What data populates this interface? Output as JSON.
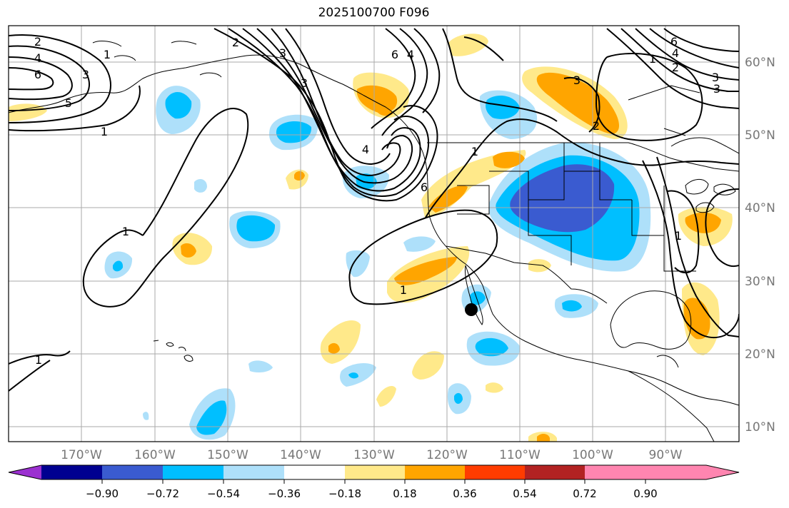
{
  "title": "2025100700 F096",
  "axes": {
    "lon_ticks": [
      "170°W",
      "160°W",
      "150°W",
      "140°W",
      "130°W",
      "120°W",
      "110°W",
      "100°W",
      "90°W"
    ],
    "lat_ticks": [
      "60°N",
      "50°N",
      "40°N",
      "30°N",
      "20°N",
      "10°N"
    ]
  },
  "colorbar": {
    "ticks": [
      "−0.90",
      "−0.72",
      "−0.54",
      "−0.36",
      "−0.18",
      "0.18",
      "0.36",
      "0.54",
      "0.72",
      "0.90"
    ],
    "colors": [
      "#9b30d0",
      "#000090",
      "#3a5bd0",
      "#00bfff",
      "#aee0fa",
      "#ffffff",
      "#ffe98a",
      "#ffa500",
      "#ff3c00",
      "#b22222",
      "#ff85b0"
    ]
  },
  "contour_labels": [
    "2",
    "4",
    "6",
    "3",
    "5",
    "1",
    "1",
    "1",
    "1",
    "2",
    "3",
    "4",
    "6",
    "3",
    "4",
    "6",
    "1",
    "1",
    "3",
    "4",
    "6",
    "2",
    "3",
    "2",
    "1",
    "3",
    "1"
  ],
  "marker": "location-dot"
}
